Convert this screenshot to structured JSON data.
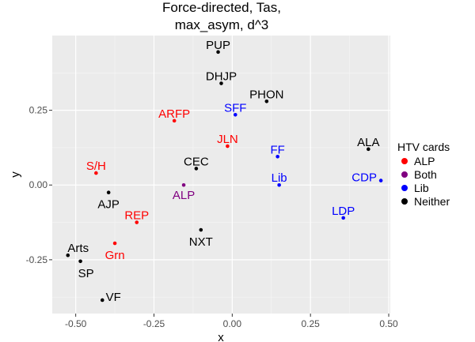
{
  "chart_data": {
    "type": "scatter",
    "title": [
      "Force-directed, Tas,",
      "max_asym, d^3"
    ],
    "xlabel": "x",
    "ylabel": "y",
    "xlim": [
      -0.575,
      0.505
    ],
    "ylim": [
      -0.43,
      0.5
    ],
    "xticks": [
      -0.5,
      -0.25,
      0.0,
      0.25,
      0.5
    ],
    "xtick_labels": [
      "-0.50",
      "-0.25",
      "0.00",
      "0.25",
      "0.50"
    ],
    "yticks": [
      -0.25,
      0.0,
      0.25
    ],
    "ytick_labels": [
      "-0.25",
      "0.00",
      "0.25"
    ],
    "grid": true,
    "legend": {
      "title": "HTV cards",
      "position": "right",
      "entries": [
        {
          "label": "ALP",
          "color": "#ff0000"
        },
        {
          "label": "Both",
          "color": "#800080"
        },
        {
          "label": "Lib",
          "color": "#0000ff"
        },
        {
          "label": "Neither",
          "color": "#000000"
        }
      ]
    },
    "points": [
      {
        "label": "PUP",
        "x": -0.045,
        "y": 0.445,
        "group": "Neither"
      },
      {
        "label": "DHJP",
        "x": -0.035,
        "y": 0.34,
        "group": "Neither"
      },
      {
        "label": "PHON",
        "x": 0.11,
        "y": 0.28,
        "group": "Neither"
      },
      {
        "label": "ARFP",
        "x": -0.185,
        "y": 0.215,
        "group": "ALP"
      },
      {
        "label": "SFF",
        "x": 0.01,
        "y": 0.235,
        "group": "Lib"
      },
      {
        "label": "JLN",
        "x": -0.015,
        "y": 0.13,
        "group": "ALP"
      },
      {
        "label": "FF",
        "x": 0.145,
        "y": 0.095,
        "group": "Lib"
      },
      {
        "label": "ALA",
        "x": 0.435,
        "y": 0.12,
        "group": "Neither"
      },
      {
        "label": "S/H",
        "x": -0.435,
        "y": 0.04,
        "group": "ALP"
      },
      {
        "label": "CEC",
        "x": -0.115,
        "y": 0.055,
        "group": "Neither"
      },
      {
        "label": "Lib",
        "x": 0.15,
        "y": 0.0,
        "group": "Lib"
      },
      {
        "label": "CDP",
        "x": 0.475,
        "y": 0.015,
        "group": "Lib"
      },
      {
        "label": "ALP",
        "x": -0.155,
        "y": 0.0,
        "group": "Both"
      },
      {
        "label": "AJP",
        "x": -0.395,
        "y": -0.025,
        "group": "Neither"
      },
      {
        "label": "LDP",
        "x": 0.355,
        "y": -0.11,
        "group": "Lib"
      },
      {
        "label": "REP",
        "x": -0.305,
        "y": -0.125,
        "group": "ALP"
      },
      {
        "label": "NXT",
        "x": -0.1,
        "y": -0.15,
        "group": "Neither"
      },
      {
        "label": "Grn",
        "x": -0.375,
        "y": -0.195,
        "group": "ALP"
      },
      {
        "label": "Arts",
        "x": -0.525,
        "y": -0.235,
        "group": "Neither"
      },
      {
        "label": "SP",
        "x": -0.485,
        "y": -0.255,
        "group": "Neither"
      },
      {
        "label": "VF",
        "x": -0.415,
        "y": -0.385,
        "group": "Neither"
      }
    ]
  }
}
